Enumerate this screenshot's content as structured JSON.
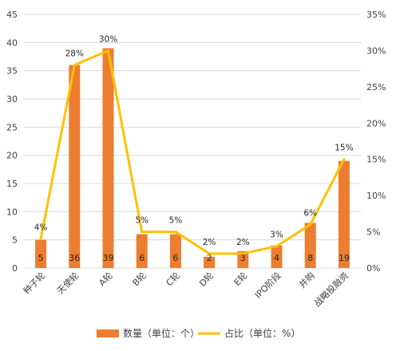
{
  "chart_data": {
    "type": "bar",
    "categories": [
      "种子轮",
      "天使轮",
      "A轮",
      "B轮",
      "C轮",
      "D轮",
      "E轮",
      "IPO阶段",
      "并购",
      "战略投融资"
    ],
    "series": [
      {
        "name": "数量（单位：个）",
        "type": "bar",
        "axis": "left",
        "values": [
          5,
          36,
          39,
          6,
          6,
          2,
          3,
          4,
          8,
          19
        ],
        "labels": [
          "5",
          "36",
          "39",
          "6",
          "6",
          "2",
          "3",
          "4",
          "8",
          "19"
        ]
      },
      {
        "name": "占比（单位：%）",
        "type": "line",
        "axis": "right",
        "values": [
          4,
          28,
          30,
          5,
          5,
          2,
          2,
          3,
          6,
          15
        ],
        "labels": [
          "4%",
          "28%",
          "30%",
          "5%",
          "5%",
          "2%",
          "2%",
          "3%",
          "6%",
          "15%"
        ]
      }
    ],
    "y_left": {
      "ylim": [
        0,
        45
      ],
      "ticks": [
        "0",
        "5",
        "10",
        "15",
        "20",
        "25",
        "30",
        "35",
        "40",
        "45"
      ]
    },
    "y_right": {
      "ylim": [
        0,
        35
      ],
      "ticks": [
        "0%",
        "5%",
        "10%",
        "15%",
        "20%",
        "25%",
        "30%",
        "35%"
      ]
    },
    "grid": true,
    "legend_position": "bottom",
    "colors": {
      "bar": "#ED7D31",
      "line": "#FFC000",
      "grid": "#D9D9D9",
      "text": "#404040"
    }
  },
  "legend": {
    "bar_label": "数量（单位：个）",
    "line_label": "占比（单位：%）"
  }
}
